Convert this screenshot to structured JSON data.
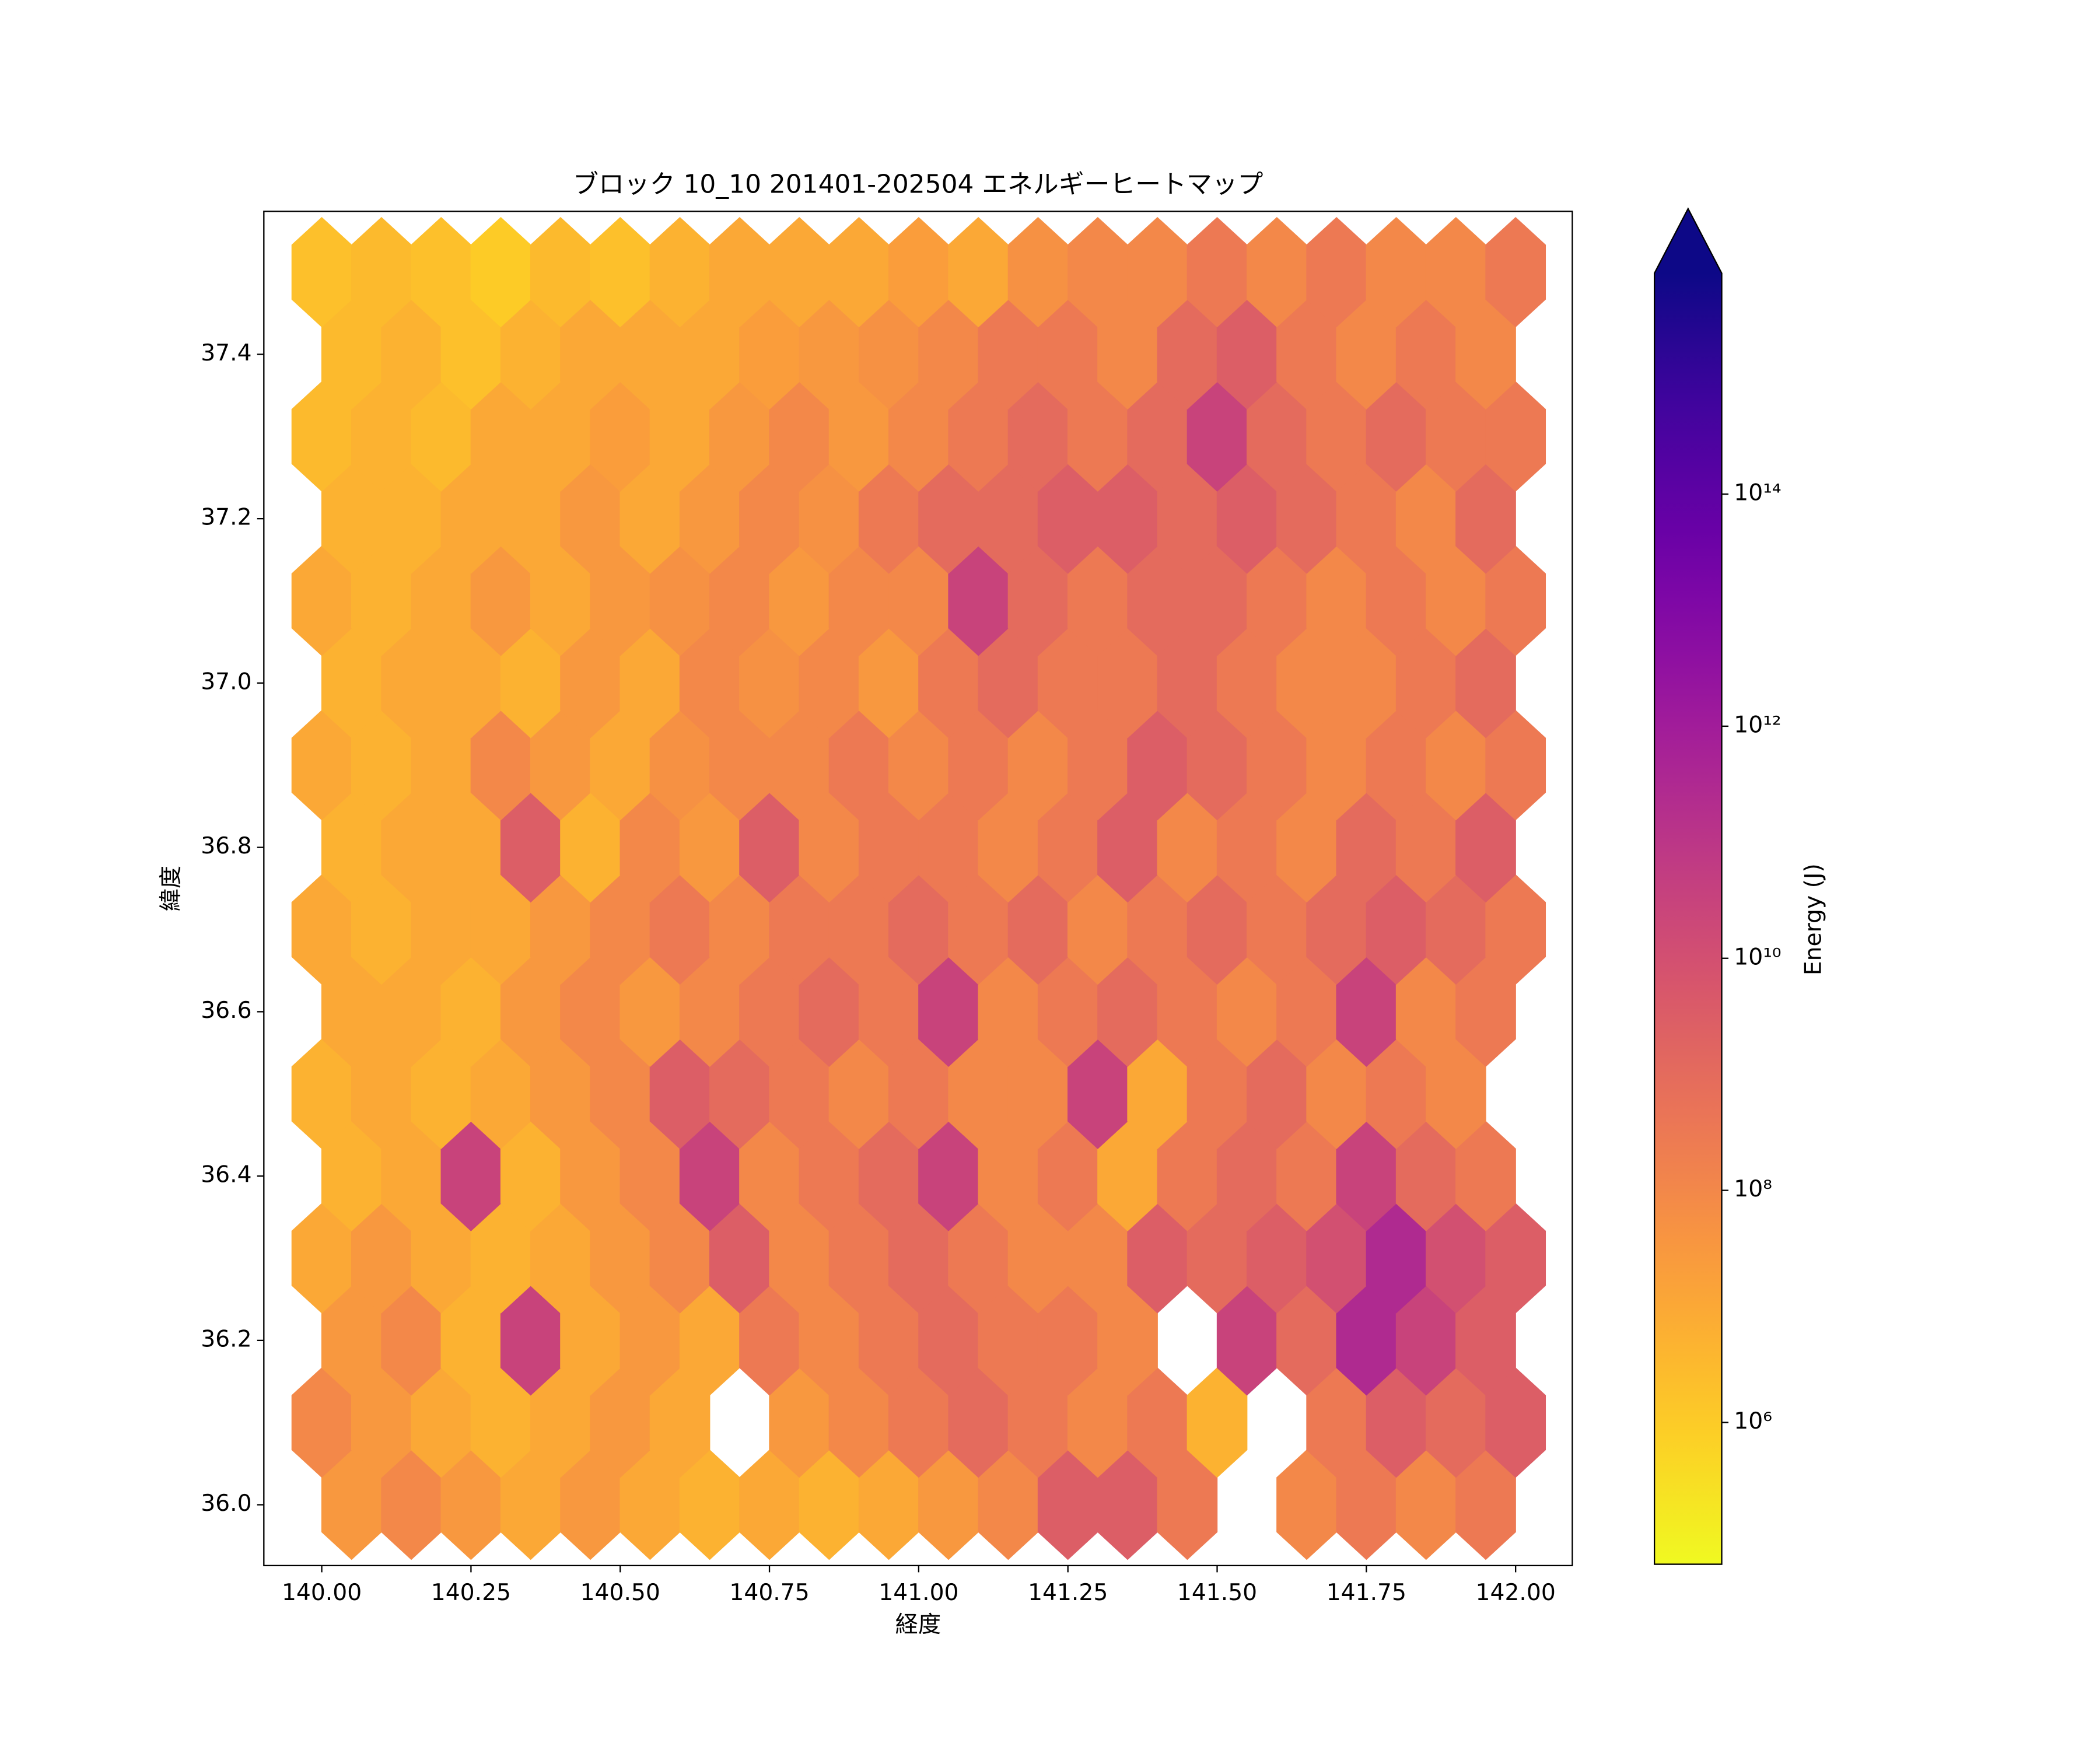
{
  "chart_data": {
    "type": "hexbin",
    "title": "ブロック 10_10 201401-202504 エネルギーヒートマップ",
    "xlabel": "経度",
    "ylabel": "緯度",
    "colorbar_label": "Energy (J)",
    "colormap": "plasma_r",
    "log_scale": true,
    "extend": "max",
    "xlim": [
      139.903,
      142.095
    ],
    "ylim": [
      35.926,
      37.574
    ],
    "xticks": [
      {
        "value": 140,
        "label": "140.00"
      },
      {
        "value": 140.25,
        "label": "140.25"
      },
      {
        "value": 140.5,
        "label": "140.50"
      },
      {
        "value": 140.75,
        "label": "140.75"
      },
      {
        "value": 141,
        "label": "141.00"
      },
      {
        "value": 141.25,
        "label": "141.25"
      },
      {
        "value": 141.5,
        "label": "141.50"
      },
      {
        "value": 141.75,
        "label": "141.75"
      },
      {
        "value": 142,
        "label": "142.00"
      }
    ],
    "yticks": [
      {
        "value": 36,
        "label": "36.0"
      },
      {
        "value": 36.2,
        "label": "36.2"
      },
      {
        "value": 36.4,
        "label": "36.4"
      },
      {
        "value": 36.6,
        "label": "36.6"
      },
      {
        "value": 36.8,
        "label": "36.8"
      },
      {
        "value": 37,
        "label": "37.0"
      },
      {
        "value": 37.2,
        "label": "37.2"
      },
      {
        "value": 37.4,
        "label": "37.4"
      }
    ],
    "clim": [
      60000.0,
      8000000000000000.0
    ],
    "cticks": [
      {
        "value": 1000000.0,
        "label": "10⁶"
      },
      {
        "value": 100000000.0,
        "label": "10⁸"
      },
      {
        "value": 10000000000.0,
        "label": "10¹⁰"
      },
      {
        "value": 1000000000000.0,
        "label": "10¹²"
      },
      {
        "value": 100000000000000.0,
        "label": "10¹⁴"
      }
    ],
    "x": [
      140.0,
      140.1,
      140.2,
      140.3,
      140.4,
      140.5,
      140.6,
      140.7,
      140.8,
      140.9,
      141.0,
      141.1,
      141.2,
      141.3,
      141.4,
      141.5,
      141.6,
      141.7,
      141.8,
      141.9,
      142.0
    ],
    "x_offset": [
      140.05,
      140.15,
      140.25,
      140.35,
      140.45,
      140.55,
      140.65,
      140.75,
      140.85,
      140.95,
      141.05,
      141.15,
      141.25,
      141.35,
      141.45,
      141.55,
      141.65,
      141.75,
      141.85,
      141.95
    ],
    "y": [
      36.0,
      36.1,
      36.2,
      36.3,
      36.4,
      36.5,
      36.6,
      36.7,
      36.8,
      36.9,
      37.0,
      37.1,
      37.2,
      37.3,
      37.4,
      37.5
    ],
    "values": [
      [
        30000000.0,
        100000000.0,
        30000000.0,
        10000000.0,
        30000000.0,
        10000000.0,
        5000000.0,
        10000000.0,
        5000000.0,
        10000000.0,
        30000000.0,
        100000000.0,
        3000000000.0,
        3000000000.0,
        300000000.0,
        null,
        100000000.0,
        300000000.0,
        100000000.0,
        300000000.0
      ],
      [
        100000000.0,
        30000000.0,
        10000000.0,
        5000000.0,
        10000000.0,
        30000000.0,
        10000000.0,
        null,
        30000000.0,
        100000000.0,
        300000000.0,
        1000000000.0,
        300000000.0,
        100000000.0,
        300000000.0,
        5000000.0,
        null,
        300000000.0,
        3000000000.0,
        1000000000.0,
        3000000000.0
      ],
      [
        30000000.0,
        100000000.0,
        5000000.0,
        30000000000.0,
        10000000.0,
        30000000.0,
        10000000.0,
        300000000.0,
        100000000.0,
        300000000.0,
        1000000000.0,
        300000000.0,
        300000000.0,
        100000000.0,
        null,
        30000000000.0,
        1000000000.0,
        300000000000.0,
        30000000000.0,
        3000000000.0
      ],
      [
        10000000.0,
        30000000.0,
        10000000.0,
        5000000.0,
        10000000.0,
        30000000.0,
        100000000.0,
        3000000000.0,
        100000000.0,
        300000000.0,
        1000000000.0,
        300000000.0,
        100000000.0,
        100000000.0,
        3000000000.0,
        1000000000.0,
        3000000000.0,
        10000000000.0,
        300000000000.0,
        10000000000.0,
        3000000000.0
      ],
      [
        5000000.0,
        10000000.0,
        30000000000.0,
        5000000.0,
        30000000.0,
        100000000.0,
        30000000000.0,
        100000000.0,
        300000000.0,
        1000000000.0,
        30000000000.0,
        100000000.0,
        300000000.0,
        10000000.0,
        300000000.0,
        1000000000.0,
        300000000.0,
        30000000000.0,
        1000000000.0,
        300000000.0
      ],
      [
        5000000.0,
        10000000.0,
        5000000.0,
        10000000.0,
        30000000.0,
        100000000.0,
        3000000000.0,
        1000000000.0,
        300000000.0,
        100000000.0,
        300000000.0,
        100000000.0,
        100000000.0,
        30000000000.0,
        10000000.0,
        300000000.0,
        1000000000.0,
        100000000.0,
        300000000.0,
        100000000.0,
        null
      ],
      [
        10000000.0,
        10000000.0,
        5000000.0,
        30000000.0,
        100000000.0,
        30000000.0,
        100000000.0,
        300000000.0,
        1000000000.0,
        300000000.0,
        30000000000.0,
        100000000.0,
        300000000.0,
        1000000000.0,
        300000000.0,
        100000000.0,
        300000000.0,
        30000000000.0,
        100000000.0,
        300000000.0
      ],
      [
        10000000.0,
        5000000.0,
        10000000.0,
        10000000.0,
        30000000.0,
        100000000.0,
        300000000.0,
        100000000.0,
        300000000.0,
        300000000.0,
        1000000000.0,
        300000000.0,
        1000000000.0,
        100000000.0,
        300000000.0,
        1000000000.0,
        300000000.0,
        1000000000.0,
        3000000000.0,
        1000000000.0,
        300000000.0
      ],
      [
        5000000.0,
        10000000.0,
        10000000.0,
        3000000000.0,
        5000000.0,
        100000000.0,
        30000000.0,
        3000000000.0,
        100000000.0,
        300000000.0,
        300000000.0,
        100000000.0,
        300000000.0,
        3000000000.0,
        100000000.0,
        300000000.0,
        100000000.0,
        1000000000.0,
        300000000.0,
        3000000000.0
      ],
      [
        10000000.0,
        5000000.0,
        10000000.0,
        100000000.0,
        30000000.0,
        10000000.0,
        50000000.0,
        100000000.0,
        100000000.0,
        300000000.0,
        100000000.0,
        300000000.0,
        100000000.0,
        300000000.0,
        3000000000.0,
        1000000000.0,
        300000000.0,
        100000000.0,
        300000000.0,
        100000000.0,
        300000000.0
      ],
      [
        5000000.0,
        10000000.0,
        10000000.0,
        5000000.0,
        30000000.0,
        10000000.0,
        100000000.0,
        50000000.0,
        100000000.0,
        30000000.0,
        300000000.0,
        1000000000.0,
        300000000.0,
        300000000.0,
        1000000000.0,
        300000000.0,
        100000000.0,
        100000000.0,
        300000000.0,
        1000000000.0
      ],
      [
        10000000.0,
        5000000.0,
        10000000.0,
        30000000.0,
        10000000.0,
        30000000.0,
        50000000.0,
        100000000.0,
        30000000.0,
        100000000.0,
        100000000.0,
        30000000000.0,
        1000000000.0,
        300000000.0,
        1000000000.0,
        1000000000.0,
        300000000.0,
        100000000.0,
        300000000.0,
        100000000.0,
        300000000.0
      ],
      [
        5000000.0,
        5000000.0,
        10000000.0,
        10000000.0,
        30000000.0,
        10000000.0,
        30000000.0,
        100000000.0,
        50000000.0,
        300000000.0,
        1000000000.0,
        1000000000.0,
        3000000000.0,
        3000000000.0,
        1000000000.0,
        3000000000.0,
        1000000000.0,
        300000000.0,
        100000000.0,
        1000000000.0
      ],
      [
        3000000.0,
        5000000.0,
        3000000.0,
        10000000.0,
        10000000.0,
        20000000.0,
        10000000.0,
        30000000.0,
        100000000.0,
        30000000.0,
        100000000.0,
        300000000.0,
        1000000000.0,
        300000000.0,
        1000000000.0,
        30000000000.0,
        1000000000.0,
        300000000.0,
        1000000000.0,
        300000000.0,
        300000000.0
      ],
      [
        3000000.0,
        5000000.0,
        2000000.0,
        5000000.0,
        10000000.0,
        10000000.0,
        10000000.0,
        20000000.0,
        30000000.0,
        50000000.0,
        100000000.0,
        300000000.0,
        300000000.0,
        100000000.0,
        1000000000.0,
        3000000000.0,
        300000000.0,
        100000000.0,
        300000000.0,
        100000000.0
      ],
      [
        2000000.0,
        3000000.0,
        2000000.0,
        1000000.0,
        3000000.0,
        2000000.0,
        5000000.0,
        10000000.0,
        10000000.0,
        10000000.0,
        20000000.0,
        10000000.0,
        50000000.0,
        100000000.0,
        100000000.0,
        300000000.0,
        100000000.0,
        300000000.0,
        100000000.0,
        100000000.0,
        300000000.0
      ]
    ]
  }
}
